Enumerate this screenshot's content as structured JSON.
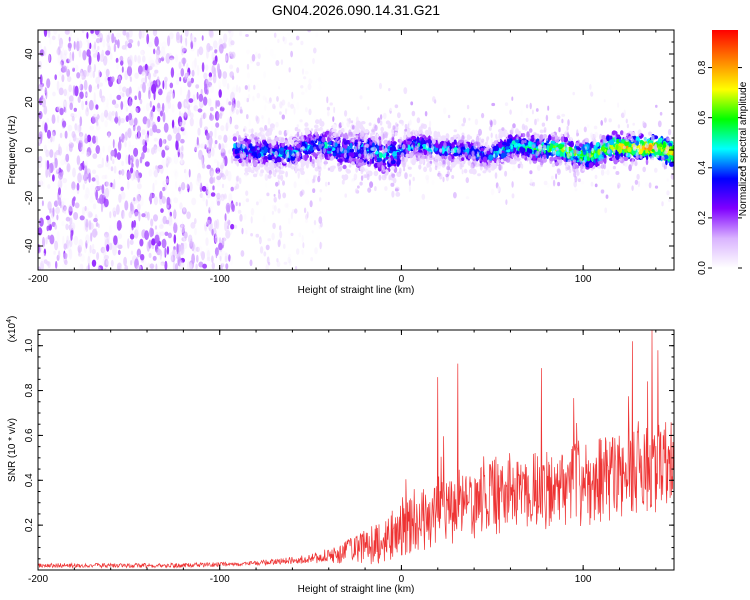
{
  "title": "GN04.2026.090.14.31.G21",
  "chart_data": [
    {
      "type": "heatmap",
      "title": "GN04.2026.090.14.31.G21",
      "xlabel": "Height of straight line (km)",
      "ylabel": "Frequency (Hz)",
      "xlim": [
        -200,
        150
      ],
      "ylim": [
        -50,
        50
      ],
      "xticks": [
        -200,
        -100,
        0,
        100
      ],
      "xtick_labels": [
        "-200",
        "-100",
        "0",
        "100"
      ],
      "yticks": [
        -40,
        -20,
        0,
        20,
        40
      ],
      "ytick_labels": [
        "-40",
        "-20",
        "0",
        "20",
        "40"
      ],
      "colorbar": {
        "label": "Normalized spectral amplitude",
        "range": [
          0.0,
          0.95
        ],
        "ticks": [
          0.0,
          0.2,
          0.4,
          0.6,
          0.8
        ],
        "tick_labels": [
          "0.0",
          "0.2",
          "0.4",
          "0.6",
          "0.8"
        ],
        "colormap": [
          "#ffffff",
          "#d9b3ff",
          "#8000ff",
          "#0000ff",
          "#00ffff",
          "#00ff00",
          "#ffff00",
          "#ff8000",
          "#ff0000"
        ]
      },
      "description_regions": [
        {
          "x_range": [
            -200,
            -92
          ],
          "freq_range": [
            -50,
            50
          ],
          "amplitude": "low (0.0-0.2), scattered noise"
        },
        {
          "x_range": [
            -92,
            -45
          ],
          "freq_range": [
            -50,
            50
          ],
          "amplitude": "very low, sparse"
        },
        {
          "x_range": [
            -92,
            150
          ],
          "freq_range": [
            -5,
            5
          ],
          "amplitude": "0.3-0.95 band centred on 0 Hz"
        }
      ]
    },
    {
      "type": "line",
      "xlabel": "Height of straight line (km)",
      "ylabel": "SNR (10 * v/v)",
      "scale_label": "(x10",
      "scale_exp": "4",
      "scale_close": ")",
      "xlim": [
        -200,
        150
      ],
      "ylim": [
        0,
        1.07
      ],
      "xticks": [
        -200,
        -100,
        0,
        100
      ],
      "xtick_labels": [
        "-200",
        "-100",
        "0",
        "100"
      ],
      "yticks": [
        0.2,
        0.4,
        0.6,
        0.8,
        1.0
      ],
      "ytick_labels": [
        "0.2",
        "0.4",
        "0.6",
        "0.8",
        "1.0"
      ],
      "color": "#ee3333",
      "envelope": [
        {
          "x": -200,
          "mean": 0.02,
          "spread": 0.01
        },
        {
          "x": -120,
          "mean": 0.02,
          "spread": 0.01
        },
        {
          "x": -80,
          "mean": 0.03,
          "spread": 0.01
        },
        {
          "x": -50,
          "mean": 0.05,
          "spread": 0.02
        },
        {
          "x": -35,
          "mean": 0.07,
          "spread": 0.04
        },
        {
          "x": -25,
          "mean": 0.09,
          "spread": 0.07
        },
        {
          "x": -10,
          "mean": 0.13,
          "spread": 0.1
        },
        {
          "x": 0,
          "mean": 0.18,
          "spread": 0.12
        },
        {
          "x": 20,
          "mean": 0.25,
          "spread": 0.15
        },
        {
          "x": 50,
          "mean": 0.32,
          "spread": 0.17
        },
        {
          "x": 80,
          "mean": 0.36,
          "spread": 0.18
        },
        {
          "x": 110,
          "mean": 0.4,
          "spread": 0.2
        },
        {
          "x": 150,
          "mean": 0.47,
          "spread": 0.2
        }
      ],
      "peaks": [
        {
          "x": 20,
          "y": 0.86
        },
        {
          "x": 31,
          "y": 0.92
        },
        {
          "x": 77,
          "y": 0.9
        },
        {
          "x": 127,
          "y": 1.02
        },
        {
          "x": 138,
          "y": 1.07
        },
        {
          "x": 141,
          "y": 0.98
        }
      ]
    }
  ]
}
